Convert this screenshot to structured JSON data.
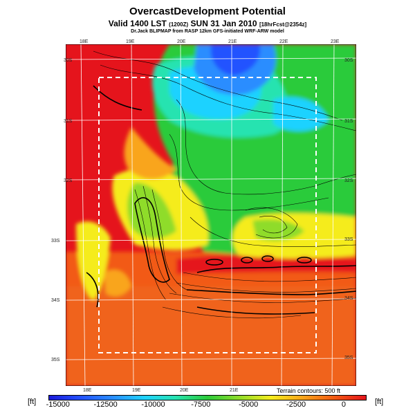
{
  "title": "OvercastDevelopment Potential",
  "subtitle_main": "Valid 1400 LST",
  "subtitle_code": "(1200Z)",
  "subtitle_date": "SUN 31 Jan 2010",
  "subtitle_fcst": "[18hrFcst@2354z]",
  "credit": "Dr.Jack BLIPMAP from RASP 12km GFS-initiated WRF-ARW model",
  "terrain_note": "Terrain contours: 500 ft",
  "unit_left": "[ft]",
  "unit_right": "[ft]",
  "top_lon_labels": [
    "18E",
    "19E",
    "20E",
    "21E",
    "22E",
    "23E"
  ],
  "bottom_lon_labels": [
    "18E",
    "19E",
    "20E",
    "21E"
  ],
  "left_lat_labels": [
    "30S",
    "31S",
    "32S",
    "33S",
    "34S",
    "35S"
  ],
  "right_lat_labels": [
    "30S",
    "31S",
    "32S",
    "33S",
    "34S",
    "35S"
  ],
  "colorbar_ticks": [
    "-15000",
    "-12500",
    "-10000",
    "-7500",
    "-5000",
    "-2500",
    "0"
  ],
  "colorbar_tick_values": [
    -15000,
    -12500,
    -10000,
    -7500,
    -5000,
    -2500,
    0
  ],
  "colorbar_range": [
    -15500,
    1200
  ],
  "colors": {
    "red": "#e5141c",
    "orange": "#f25a12",
    "amber": "#f9a51a",
    "yellow": "#f5ec1e",
    "lime": "#8fdc2a",
    "green": "#2ccb3a",
    "teal": "#27e3b0",
    "cyan": "#1fd2ff",
    "sky": "#2a8dff",
    "blue": "#2452ff",
    "deep_blue": "#1b1bd9"
  }
}
